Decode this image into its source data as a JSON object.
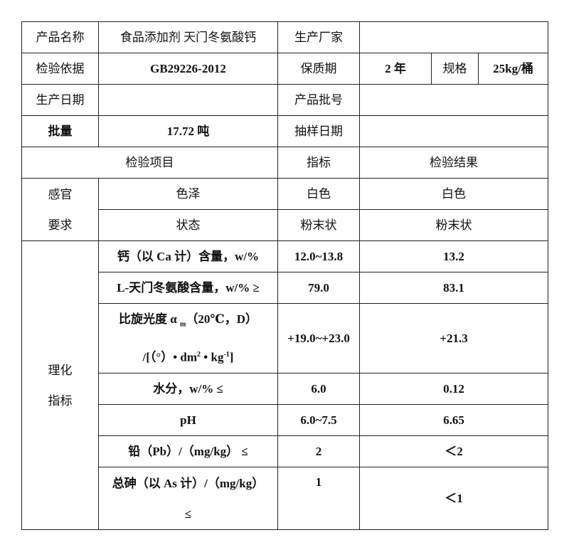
{
  "header_rows": {
    "product_name_label": "产品名称",
    "product_name": "食品添加剂 天门冬氨酸钙",
    "manufacturer_label": "生产厂家",
    "manufacturer": "",
    "standard_label": "检验依据",
    "standard": "GB29226-2012",
    "shelf_life_label": "保质期",
    "shelf_life": "2 年",
    "spec_label": "规格",
    "spec": "25kg/桶",
    "production_date_label": "生产日期",
    "production_date": "",
    "batch_no_label": "产品批号",
    "batch_no": "",
    "batch_qty_label": "批量",
    "batch_qty": "17.72 吨",
    "sampling_date_label": "抽样日期",
    "sampling_date": ""
  },
  "columns": {
    "item": "检验项目",
    "spec": "指标",
    "result": "检验结果"
  },
  "sensory": {
    "group_line1": "感官",
    "group_line2": "要求",
    "rows": [
      {
        "item": "色泽",
        "spec": "白色",
        "result": "白色"
      },
      {
        "item": "状态",
        "spec": "粉末状",
        "result": "粉末状"
      }
    ]
  },
  "physchem": {
    "group_line1": "理化",
    "group_line2": "指标",
    "rows": [
      {
        "item": "钙（以 Ca 计）含量，w/%",
        "spec": "12.0~13.8",
        "result": "13.2"
      },
      {
        "item": "L-天门冬氨酸含量，w/% ≥",
        "spec": "79.0",
        "result": "83.1"
      },
      {
        "item_line1": "比旋光度 α",
        "item_sub": "m",
        "item_line1b": "（20℃，D）",
        "item_line2a": "/[（°）• dm",
        "item_sup1": "2",
        "item_line2b": " • kg",
        "item_sup2": "-1",
        "item_line2c": "]",
        "spec": "+19.0~+23.0",
        "result": "+21.3"
      },
      {
        "item": "水分，w/% ≤",
        "spec": "6.0",
        "result": "0.12"
      },
      {
        "item": "pH",
        "spec": "6.0~7.5",
        "result": "6.65"
      },
      {
        "item": "铅（Pb）/（mg/kg） ≤",
        "spec": "2",
        "result": "＜2"
      },
      {
        "item_line1": "总砷（以 As 计）/（mg/kg）",
        "item_line2": "≤",
        "spec": "1",
        "result": "＜1"
      }
    ]
  }
}
